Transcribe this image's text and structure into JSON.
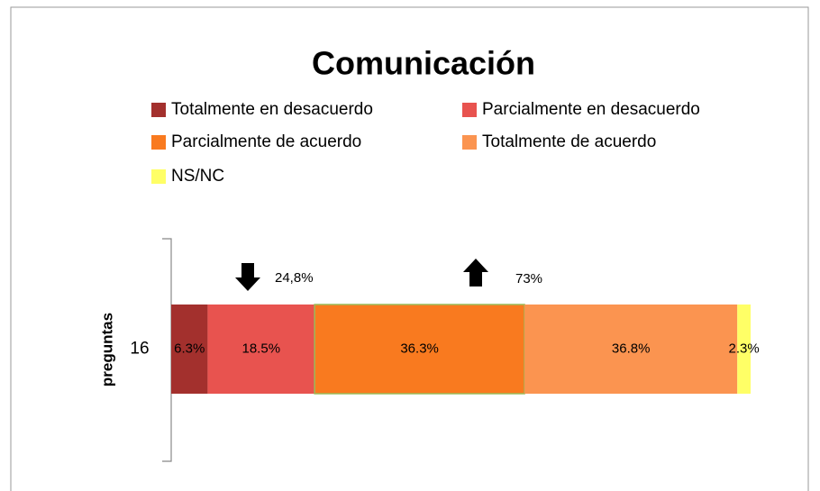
{
  "chart_data": {
    "type": "stacked_bar_horizontal",
    "title": "Comunicación",
    "categories": [
      "16"
    ],
    "ylabel": "preguntas",
    "series": [
      {
        "name": "Totalmente en desacuerdo",
        "color": "#a3302d",
        "values": [
          6.3
        ],
        "value_labels": [
          "6.3%"
        ]
      },
      {
        "name": "Parcialmente en desacuerdo",
        "color": "#e8534f",
        "values": [
          18.5
        ],
        "value_labels": [
          "18.5%"
        ]
      },
      {
        "name": "Parcialmente de acuerdo",
        "color": "#f97a1f",
        "values": [
          36.3
        ],
        "value_labels": [
          "36.3%"
        ]
      },
      {
        "name": "Totalmente de acuerdo",
        "color": "#fb9450",
        "values": [
          36.8
        ],
        "value_labels": [
          "36.8%"
        ]
      },
      {
        "name": "NS/NC",
        "color": "#ffff66",
        "values": [
          2.3
        ],
        "value_labels": [
          "2.3%"
        ]
      }
    ],
    "annotations": [
      "24,8%",
      "73%"
    ]
  }
}
